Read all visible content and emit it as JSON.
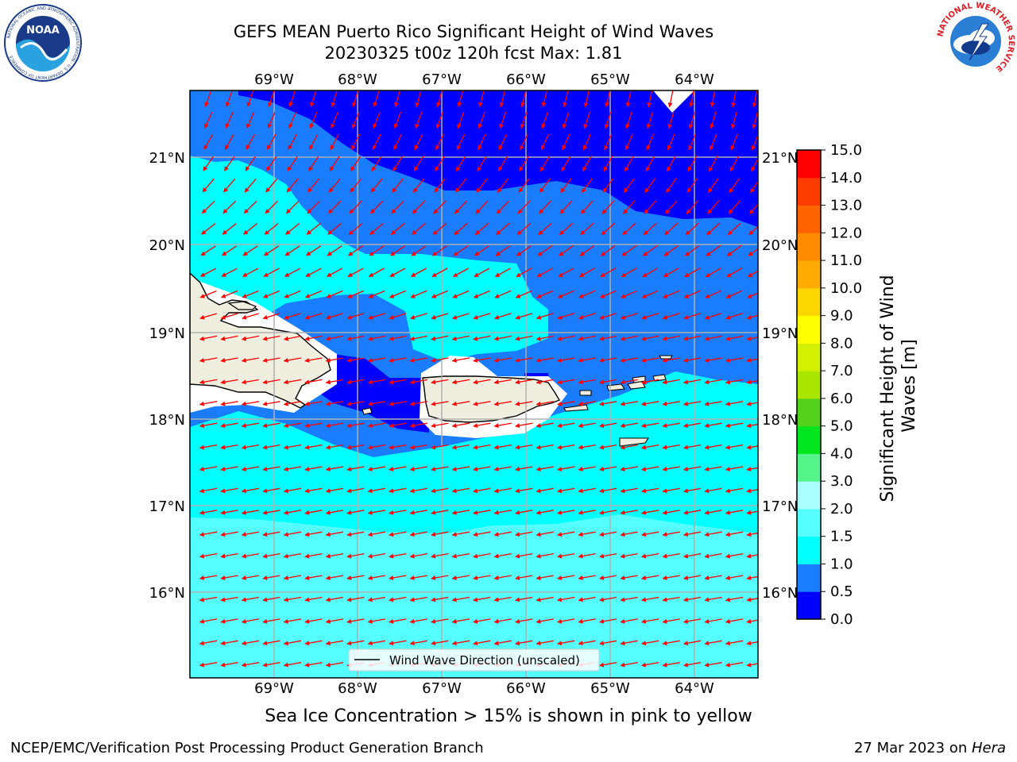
{
  "title": {
    "line1": "GEFS MEAN Puerto Rico Significant Height of Wind Waves",
    "line2": "20230325 t00z 120h fcst   Max: 1.81"
  },
  "map": {
    "lon_range": [
      -70.0,
      -63.25
    ],
    "lat_range": [
      15.0,
      21.75
    ],
    "lon_ticks": [
      -69,
      -68,
      -67,
      -66,
      -65,
      -64
    ],
    "lat_ticks": [
      16,
      17,
      18,
      19,
      20,
      21
    ],
    "lon_tick_labels": [
      "69°W",
      "68°W",
      "67°W",
      "66°W",
      "65°W",
      "64°W"
    ],
    "lat_tick_labels": [
      "16°N",
      "17°N",
      "18°N",
      "19°N",
      "20°N",
      "21°N"
    ],
    "grid": true,
    "legend_label": "Wind Wave Direction (unscaled)",
    "wave_direction": "westward",
    "arrow_color": "#ff0000",
    "land_color": "#efeedf"
  },
  "colorbar": {
    "label": "Significant Height of Wind Waves [m]",
    "ticks": [
      "0.0",
      "0.5",
      "1.0",
      "1.5",
      "2.0",
      "3.0",
      "4.0",
      "5.0",
      "6.0",
      "7.0",
      "8.0",
      "9.0",
      "10.0",
      "11.0",
      "12.0",
      "13.0",
      "14.0",
      "15.0"
    ],
    "colors": [
      "#0000ff",
      "#1a7dff",
      "#00ffff",
      "#55ffff",
      "#aaffff",
      "#55f58c",
      "#00e61e",
      "#55d21e",
      "#aae600",
      "#d2f000",
      "#ffff00",
      "#ffd700",
      "#ffaa00",
      "#ff8c00",
      "#ff6400",
      "#ff3c00",
      "#ff0000"
    ]
  },
  "sea_ice_note": "Sea Ice Concentration > 15% is shown in pink to yellow",
  "footer": {
    "left": "NCEP/EMC/Verification Post Processing Product Generation Branch",
    "date": "27 Mar 2023 on ",
    "machine": "Hera"
  },
  "logos": {
    "noaa": "NOAA",
    "noaa_ring": "NATIONAL OCEANIC AND ATMOSPHERIC ADMINISTRATION · U.S. DEPARTMENT OF COMMERCE",
    "nws": "NATIONAL WEATHER SERVICE"
  }
}
